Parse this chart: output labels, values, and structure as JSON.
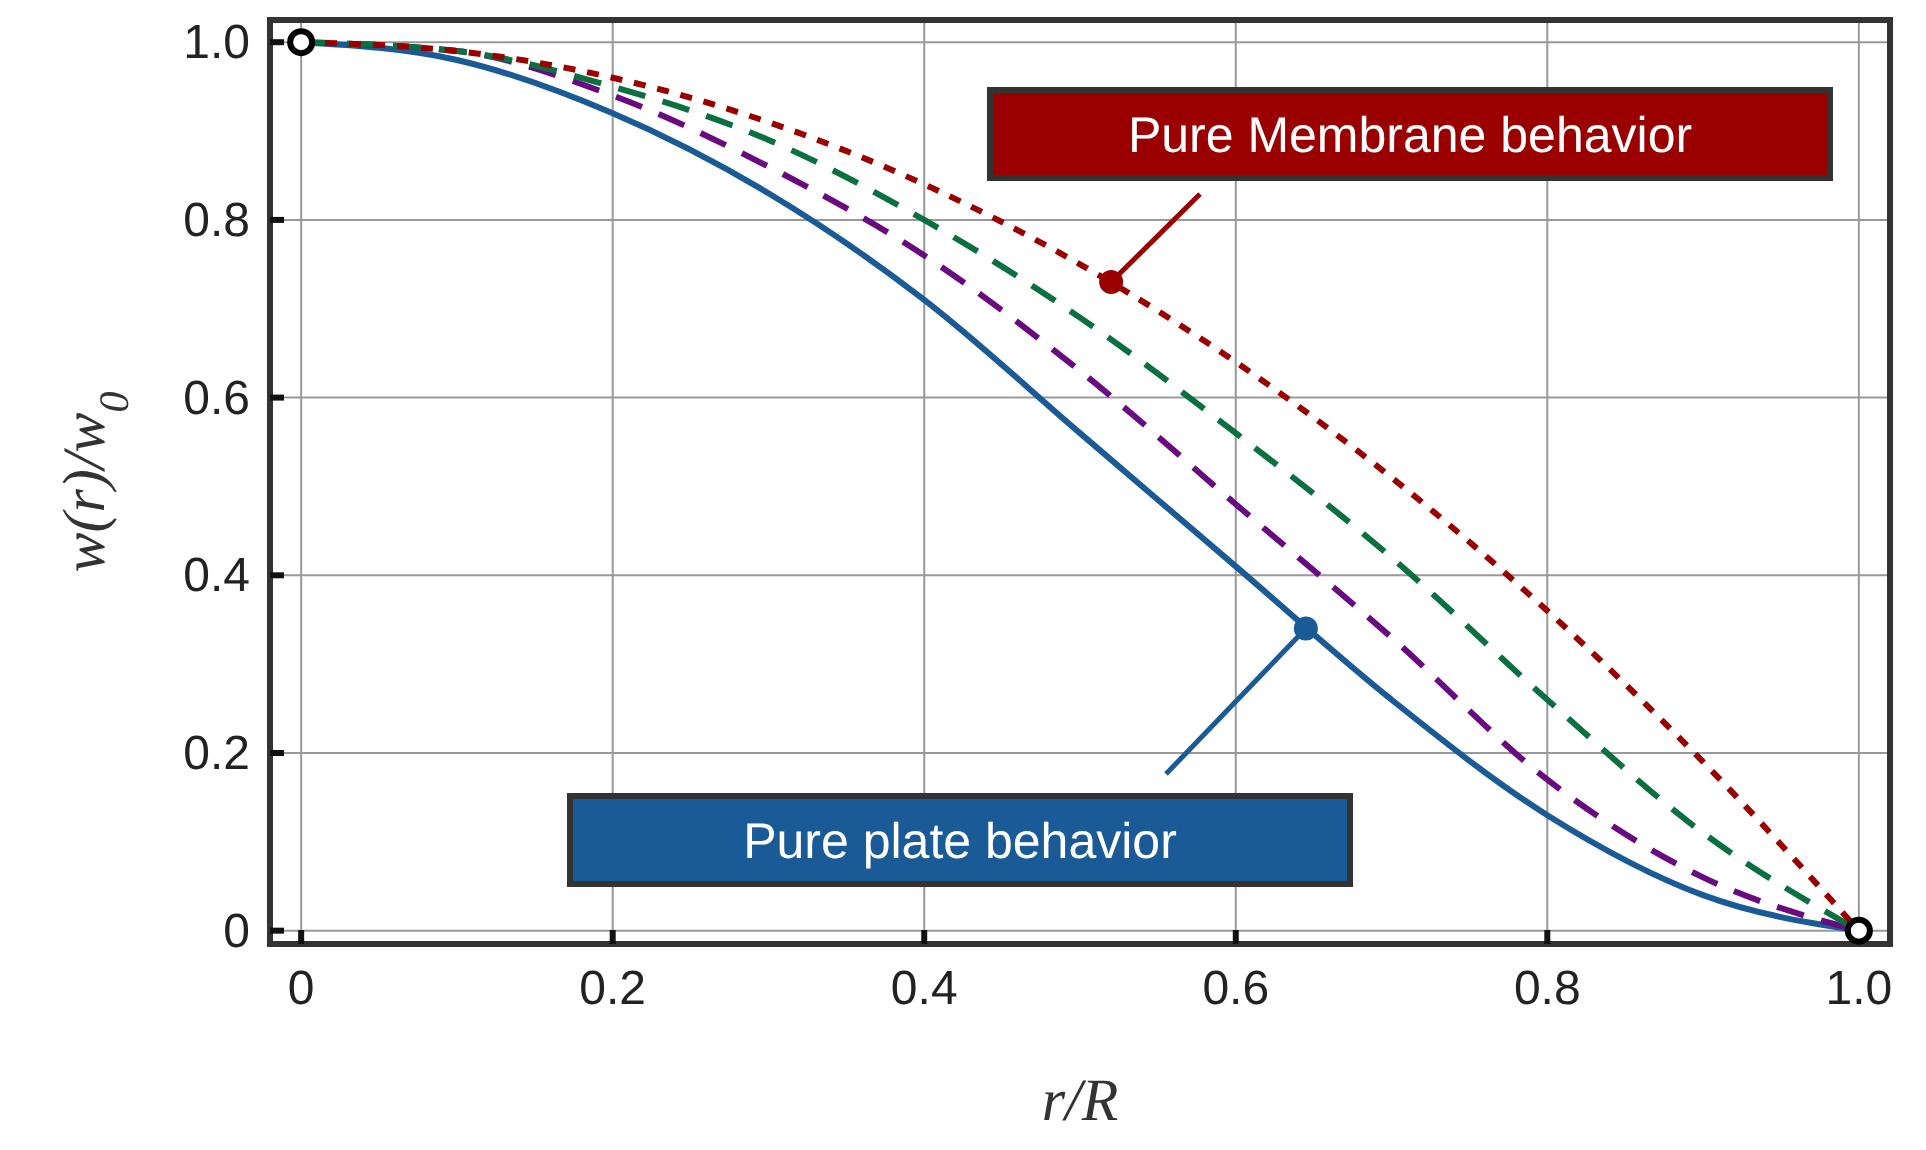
{
  "chart_data": {
    "type": "line",
    "xlabel": "r/R",
    "ylabel": "w(r)/w$_{0}$",
    "x": [
      0,
      0.1,
      0.2,
      0.3,
      0.4,
      0.5,
      0.6,
      0.7,
      0.8,
      0.9,
      1
    ],
    "series": [
      {
        "color": "#1a5a96",
        "line_style": "solid",
        "values": [
          1,
          0.98,
          0.92,
          0.83,
          0.71,
          0.56,
          0.41,
          0.26,
          0.13,
          0.04,
          0
        ]
      },
      {
        "color": "#6a0a80",
        "line_style": "dashed",
        "values": [
          1,
          0.99,
          0.94,
          0.86,
          0.76,
          0.63,
          0.48,
          0.33,
          0.17,
          0.06,
          0
        ]
      },
      {
        "color": "#0a7040",
        "line_style": "dashed",
        "values": [
          1,
          0.99,
          0.95,
          0.89,
          0.8,
          0.69,
          0.56,
          0.42,
          0.26,
          0.11,
          0
        ]
      },
      {
        "color": "#9a0000",
        "line_style": "dotted",
        "values": [
          1,
          0.99,
          0.96,
          0.91,
          0.84,
          0.75,
          0.64,
          0.51,
          0.36,
          0.19,
          0
        ]
      },
      {
        "type": "scatter",
        "color": "#000000",
        "marker": "circle",
        "x": [
          0,
          1
        ],
        "values": [
          1,
          0
        ]
      }
    ],
    "annotations": [
      {
        "text": "Pure Membrane behavior",
        "x": 0.52,
        "y": 0.73
      },
      {
        "text": "Pure plate behavior",
        "x": 0.645,
        "y": 0.34
      }
    ],
    "xlim": [
      -0.02,
      1.02
    ],
    "ylim": [
      -0.015,
      1.025
    ],
    "xticks": [
      0,
      0.2,
      0.4,
      0.6,
      0.8,
      {
        "value": 1,
        "label": "1.0"
      }
    ],
    "yticks": [
      0,
      0.2,
      0.4,
      0.6,
      0.8,
      {
        "value": 1,
        "label": "1.0"
      }
    ],
    "grid": true
  }
}
